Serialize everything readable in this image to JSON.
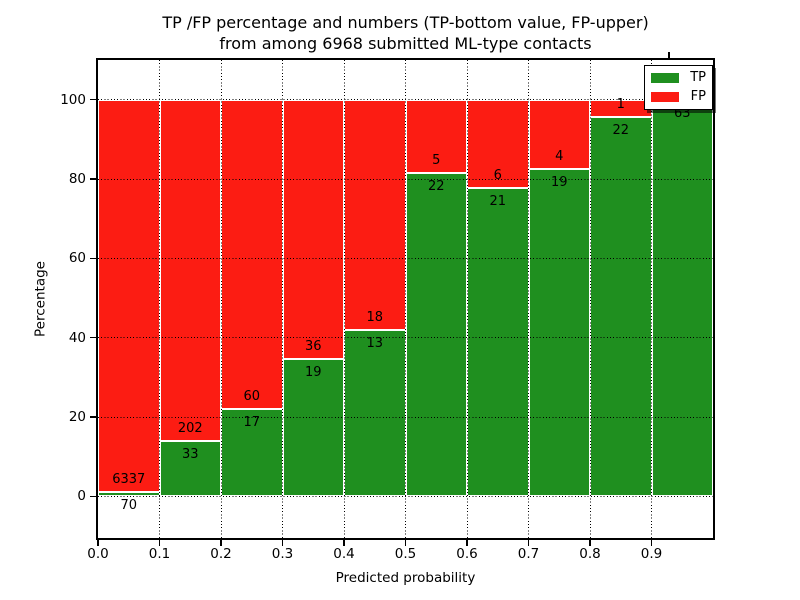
{
  "title": {
    "line1": "TP /FP percentage and numbers (TP-bottom value, FP-upper)",
    "line2": "from among 6968 submitted ML-type contacts"
  },
  "axes": {
    "xlabel": "Predicted probability",
    "ylabel": "Percentage",
    "xtick_labels": [
      "0.0",
      "0.1",
      "0.2",
      "0.3",
      "0.4",
      "0.5",
      "0.6",
      "0.7",
      "0.8",
      "0.9"
    ],
    "ytick_labels": [
      "0",
      "20",
      "40",
      "60",
      "80",
      "100"
    ],
    "ytick_values": [
      0,
      20,
      40,
      60,
      80,
      100
    ]
  },
  "legend": {
    "entries": [
      {
        "label": "TP",
        "color": "#1f8f1f"
      },
      {
        "label": "FP",
        "color": "#fc1c13"
      }
    ]
  },
  "colors": {
    "tp": "#1f8f1f",
    "fp": "#fc1c13",
    "grid": "#000000",
    "background": "#ffffff"
  },
  "chart_data": {
    "type": "bar",
    "stacked": true,
    "normalized_to_percent": true,
    "title": "TP /FP percentage and numbers (TP-bottom value, FP-upper) from among 6968 submitted ML-type contacts",
    "xlabel": "Predicted probability",
    "ylabel": "Percentage",
    "bin_start": [
      0.0,
      0.1,
      0.2,
      0.3,
      0.4,
      0.5,
      0.6,
      0.7,
      0.8,
      0.9
    ],
    "bin_width": 0.1,
    "series": [
      {
        "name": "TP",
        "color": "#1f8f1f",
        "counts": [
          70,
          33,
          17,
          19,
          13,
          22,
          21,
          19,
          22,
          63
        ]
      },
      {
        "name": "FP",
        "color": "#fc1c13",
        "counts": [
          6337,
          202,
          60,
          36,
          18,
          5,
          6,
          4,
          1,
          0
        ]
      }
    ],
    "tp_percent": [
      1.09,
      14.04,
      22.08,
      34.55,
      41.94,
      81.48,
      77.78,
      82.61,
      95.65,
      100.0
    ],
    "total_contacts": 6968,
    "xlim": [
      0.0,
      1.0
    ],
    "ylim": [
      -10.5,
      110
    ],
    "grid": true,
    "grid_style": "dotted",
    "legend_position": "upper right",
    "legend_shadow": true
  }
}
